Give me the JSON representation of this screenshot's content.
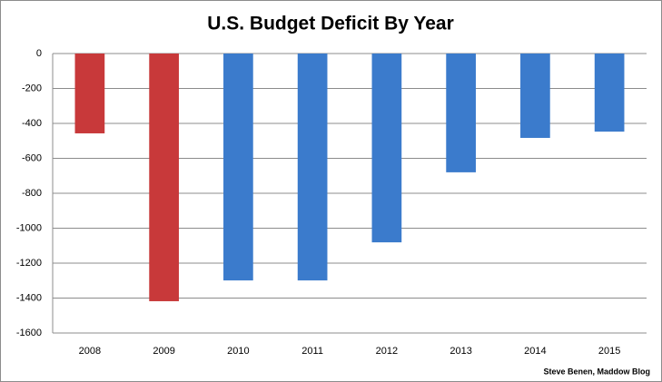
{
  "chart_data": {
    "type": "bar",
    "title": "U.S. Budget Deficit By Year",
    "categories": [
      "2008",
      "2009",
      "2010",
      "2011",
      "2012",
      "2013",
      "2014",
      "2015"
    ],
    "values": [
      -457,
      -1418,
      -1299,
      -1299,
      -1081,
      -680,
      -483,
      -447
    ],
    "colors": [
      "#c8393a",
      "#c8393a",
      "#3b7bcc",
      "#3b7bcc",
      "#3b7bcc",
      "#3b7bcc",
      "#3b7bcc",
      "#3b7bcc"
    ],
    "ylim": [
      -1600,
      0
    ],
    "yticks": [
      0,
      -200,
      -400,
      -600,
      -800,
      -1000,
      -1200,
      -1400,
      -1600
    ],
    "grid": true,
    "annotation": "Steve Benen, Maddow Blog"
  }
}
